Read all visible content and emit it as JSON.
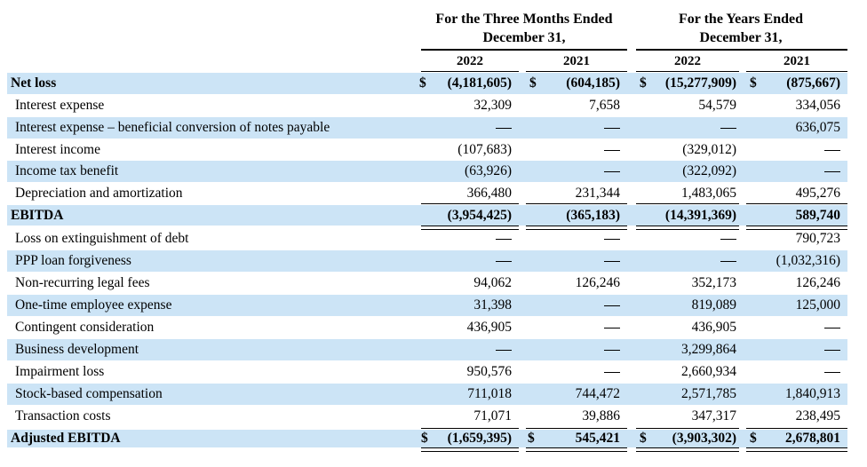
{
  "columns": {
    "group1": {
      "line1": "For the Three Months Ended",
      "line2": "December 31,"
    },
    "group2": {
      "line1": "For the Years Ended",
      "line2": "December 31,"
    },
    "years": [
      "2022",
      "2021",
      "2022",
      "2021"
    ]
  },
  "rows": [
    {
      "label": "Net loss",
      "bold": true,
      "dollar": true,
      "values": [
        "(4,181,605)",
        "(604,185)",
        "(15,277,909)",
        "(875,667)"
      ]
    },
    {
      "label": "Interest expense",
      "values": [
        "32,309",
        "7,658",
        "54,579",
        "334,056"
      ]
    },
    {
      "label": "Interest expense – beneficial conversion of notes payable",
      "values": [
        "—",
        "—",
        "—",
        "636,075"
      ]
    },
    {
      "label": "Interest income",
      "values": [
        "(107,683)",
        "—",
        "(329,012)",
        "—"
      ]
    },
    {
      "label": "Income tax benefit",
      "values": [
        "(63,926)",
        "—",
        "(322,092)",
        "—"
      ]
    },
    {
      "label": "Depreciation and amortization",
      "values": [
        "366,480",
        "231,344",
        "1,483,065",
        "495,276"
      ]
    },
    {
      "label": "EBITDA",
      "bold": true,
      "values": [
        "(3,954,425)",
        "(365,183)",
        "(14,391,369)",
        "589,740"
      ]
    },
    {
      "label": "Loss on extinguishment of debt",
      "values": [
        "—",
        "—",
        "—",
        "790,723"
      ]
    },
    {
      "label": "PPP loan forgiveness",
      "values": [
        "—",
        "—",
        "—",
        "(1,032,316)"
      ]
    },
    {
      "label": "Non-recurring legal fees",
      "values": [
        "94,062",
        "126,246",
        "352,173",
        "126,246"
      ]
    },
    {
      "label": "One-time employee expense",
      "values": [
        "31,398",
        "—",
        "819,089",
        "125,000"
      ]
    },
    {
      "label": "Contingent consideration",
      "values": [
        "436,905",
        "—",
        "436,905",
        "—"
      ]
    },
    {
      "label": "Business development",
      "values": [
        "—",
        "—",
        "3,299,864",
        "—"
      ]
    },
    {
      "label": "Impairment loss",
      "values": [
        "950,576",
        "—",
        "2,660,934",
        "—"
      ]
    },
    {
      "label": "Stock-based compensation",
      "values": [
        "711,018",
        "744,472",
        "2,571,785",
        "1,840,913"
      ]
    },
    {
      "label": "Transaction costs",
      "values": [
        "71,071",
        "39,886",
        "347,317",
        "238,495"
      ]
    },
    {
      "label": "Adjusted EBITDA",
      "bold": true,
      "dollar": true,
      "values": [
        "(1,659,395)",
        "545,421",
        "(3,903,302)",
        "2,678,801"
      ]
    }
  ],
  "currency_symbol": "$",
  "shading": {
    "row_fill": "#cce4f6"
  }
}
